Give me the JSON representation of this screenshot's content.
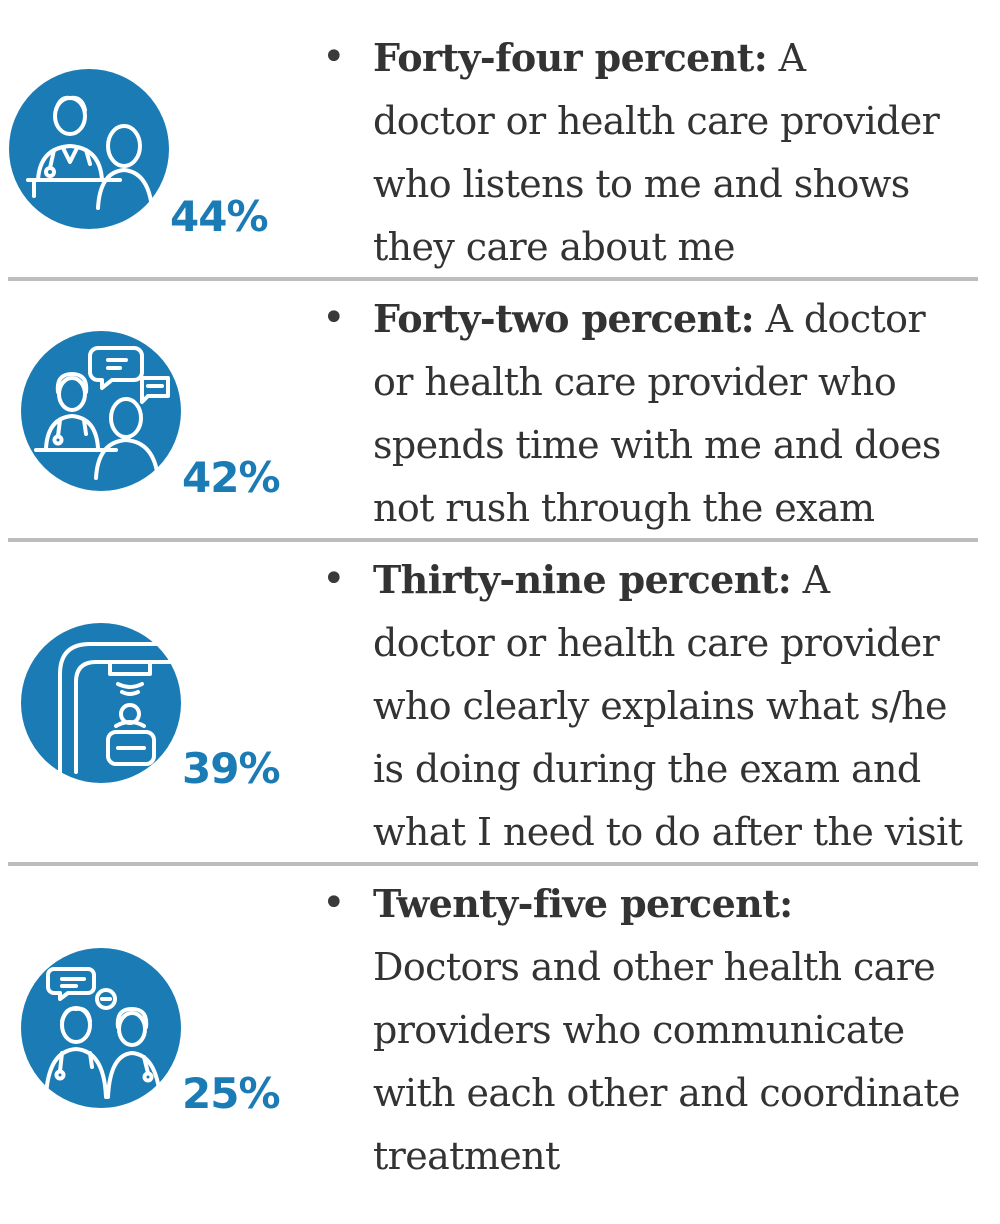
{
  "colors": {
    "accent": "#1b7bb5",
    "text": "#333333",
    "divider": "#bdbdbd"
  },
  "items": [
    {
      "icon": "doctor-patient-icon",
      "percent": "44%",
      "lead": "Forty-four percent:",
      "lines": [
        " A",
        "doctor or health care provider",
        "who listens to me and shows",
        "they care about me"
      ]
    },
    {
      "icon": "doctor-patient-conversation-icon",
      "percent": "42%",
      "lead": "Forty-two percent:",
      "lines": [
        " A doctor",
        "or health care provider who",
        "spends time with me and does",
        "not rush through the exam"
      ]
    },
    {
      "icon": "medical-scanner-icon",
      "percent": "39%",
      "lead": "Thirty-nine percent:",
      "lines": [
        " A",
        "doctor or health care provider",
        "who clearly explains what s/he",
        "is doing during the exam and",
        "what I need to do after the visit"
      ]
    },
    {
      "icon": "doctors-communicating-icon",
      "percent": "25%",
      "lead": "Twenty-five percent:",
      "lines": [
        "",
        "Doctors and other health care",
        "providers who communicate",
        "with each other and coordinate",
        "treatment"
      ]
    }
  ]
}
